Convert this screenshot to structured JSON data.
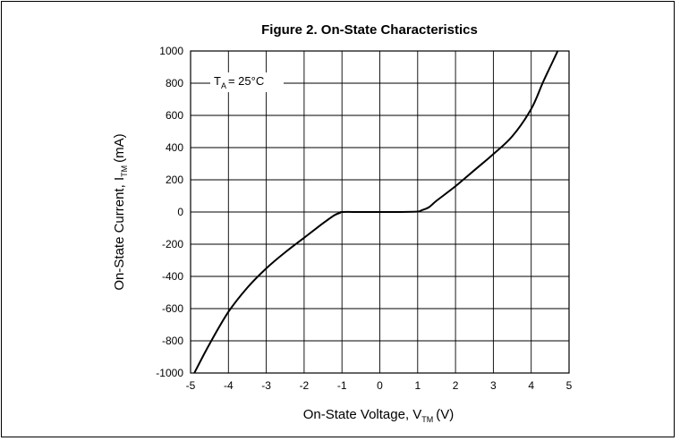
{
  "chart_data": {
    "type": "line",
    "title": "Figure 2. On-State Characteristics",
    "xlabel": {
      "main": "On-State Voltage, V",
      "sub": "TM",
      "unit": "(V)"
    },
    "ylabel": {
      "main": "On-State Current, I",
      "sub": "TM",
      "unit": "(mA)"
    },
    "annotation": {
      "main": "T",
      "sub": "A",
      "rest": "= 25°C"
    },
    "xlim": [
      -5,
      5
    ],
    "ylim": [
      -1000,
      1000
    ],
    "x_ticks": [
      "-5",
      "-4",
      "-3",
      "-2",
      "-1",
      "0",
      "1",
      "2",
      "3",
      "4",
      "5"
    ],
    "y_ticks": [
      "1000",
      "800",
      "600",
      "400",
      "200",
      "0",
      "-200",
      "-400",
      "-600",
      "-800",
      "-1000"
    ],
    "grid": true,
    "series": [
      {
        "x": [
          -4.9,
          -4.5,
          -4.0,
          -3.5,
          -3.0,
          -2.5,
          -2.0,
          -1.5,
          -1.2,
          -1.05,
          -1.0,
          -0.5,
          0.0,
          0.5,
          1.0,
          1.1,
          1.3,
          1.5,
          2.0,
          2.5,
          3.0,
          3.5,
          4.0,
          4.3,
          4.5,
          4.7
        ],
        "y": [
          -1000,
          -820,
          -620,
          -470,
          -350,
          -250,
          -160,
          -70,
          -20,
          -5,
          0,
          0,
          0,
          0,
          3,
          10,
          30,
          70,
          160,
          260,
          360,
          470,
          640,
          800,
          900,
          1000
        ]
      }
    ]
  }
}
